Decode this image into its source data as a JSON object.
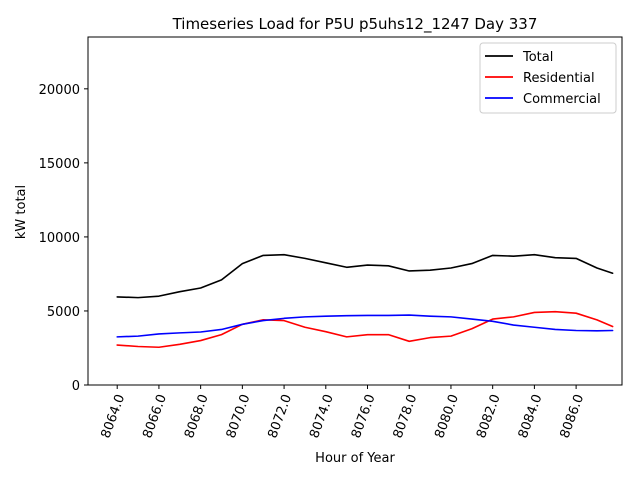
{
  "chart_data": {
    "type": "line",
    "title": "Timeseries Load for P5U p5uhs12_1247  Day 337",
    "xlabel": "Hour of Year",
    "ylabel": "kW total",
    "xlim": [
      8062.6,
      8088.2
    ],
    "ylim": [
      0,
      23500
    ],
    "x_ticks": [
      8064,
      8066,
      8068,
      8070,
      8072,
      8074,
      8076,
      8078,
      8080,
      8082,
      8084,
      8086
    ],
    "x_tick_labels": [
      "8064.0",
      "8066.0",
      "8068.0",
      "8070.0",
      "8072.0",
      "8074.0",
      "8076.0",
      "8078.0",
      "8080.0",
      "8082.0",
      "8084.0",
      "8086.0"
    ],
    "y_ticks": [
      0,
      5000,
      10000,
      15000,
      20000
    ],
    "y_tick_labels": [
      "0",
      "5000",
      "10000",
      "15000",
      "20000"
    ],
    "legend_position": "top-right",
    "x": [
      8064,
      8065,
      8066,
      8067,
      8068,
      8069,
      8070,
      8071,
      8072,
      8073,
      8074,
      8075,
      8076,
      8077,
      8078,
      8079,
      8080,
      8081,
      8082,
      8083,
      8084,
      8085,
      8086,
      8087,
      8087.75
    ],
    "series": [
      {
        "name": "Total",
        "color": "#000000",
        "values": [
          5950,
          5900,
          6000,
          6300,
          6550,
          7100,
          8200,
          8750,
          8800,
          8550,
          8250,
          7950,
          8100,
          8050,
          7700,
          7750,
          7900,
          8200,
          8750,
          8700,
          8800,
          8600,
          8550,
          7900,
          7550
        ]
      },
      {
        "name": "Residential",
        "color": "#ff0000",
        "values": [
          2700,
          2600,
          2550,
          2750,
          3000,
          3400,
          4100,
          4400,
          4350,
          3900,
          3600,
          3250,
          3400,
          3400,
          2950,
          3200,
          3300,
          3800,
          4450,
          4600,
          4900,
          4950,
          4850,
          4400,
          3950
        ]
      },
      {
        "name": "Commercial",
        "color": "#0000ff",
        "values": [
          3250,
          3300,
          3450,
          3520,
          3580,
          3750,
          4100,
          4350,
          4500,
          4600,
          4650,
          4680,
          4700,
          4700,
          4720,
          4650,
          4600,
          4450,
          4300,
          4050,
          3900,
          3750,
          3680,
          3660,
          3680
        ]
      }
    ]
  }
}
